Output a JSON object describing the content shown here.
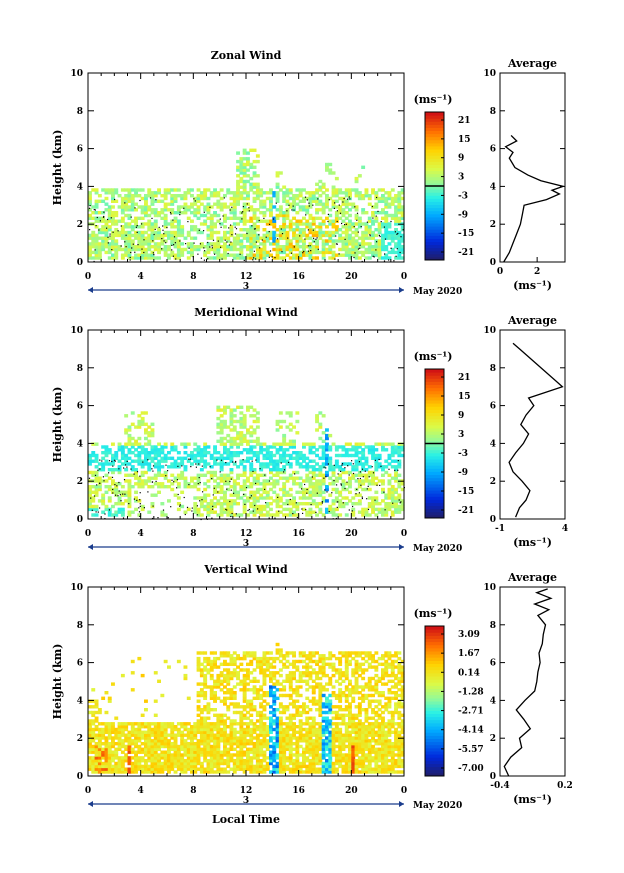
{
  "figure": {
    "month_label": "May 2020",
    "day_label": "3",
    "xlabel": "Local Time",
    "ylabel": "Height (km)",
    "unit_label": "(ms⁻¹)",
    "average_title": "Average",
    "x_ticks": [
      "0",
      "4",
      "8",
      "12",
      "16",
      "20",
      "0"
    ],
    "y_ticks": [
      "0",
      "2",
      "4",
      "6",
      "8",
      "10"
    ]
  },
  "chart_data": [
    {
      "type": "heatmap",
      "title": "Zonal Wind",
      "xlim": [
        0,
        24
      ],
      "ylim": [
        0,
        10
      ],
      "colorbar_ticks": [
        "21",
        "15",
        "9",
        "3",
        "-3",
        "-9",
        "-15",
        "-21"
      ],
      "color_range": [
        -24,
        24
      ],
      "average": {
        "title": "Average",
        "xlim": [
          0,
          3.5
        ],
        "x_ticks": [
          "0",
          "2"
        ],
        "profile": [
          [
            0.2,
            0
          ],
          [
            0.5,
            0.5
          ],
          [
            0.7,
            1
          ],
          [
            0.9,
            1.5
          ],
          [
            1.1,
            2
          ],
          [
            1.2,
            2.5
          ],
          [
            1.3,
            3
          ],
          [
            2.5,
            3.3
          ],
          [
            3.2,
            3.6
          ],
          [
            2.8,
            3.8
          ],
          [
            3.4,
            4.0
          ],
          [
            2.2,
            4.3
          ],
          [
            1.5,
            4.6
          ],
          [
            0.8,
            5.0
          ],
          [
            0.5,
            5.5
          ],
          [
            0.7,
            5.8
          ],
          [
            0.3,
            6.1
          ],
          [
            0.9,
            6.4
          ],
          [
            0.6,
            6.7
          ]
        ]
      }
    },
    {
      "type": "heatmap",
      "title": "Meridional Wind",
      "xlim": [
        0,
        24
      ],
      "ylim": [
        0,
        10
      ],
      "colorbar_ticks": [
        "21",
        "15",
        "9",
        "3",
        "-3",
        "-9",
        "-15",
        "-21"
      ],
      "color_range": [
        -24,
        24
      ],
      "average": {
        "title": "Average",
        "xlim": [
          -1,
          4
        ],
        "x_ticks": [
          "-1",
          "4"
        ],
        "profile": [
          [
            0.2,
            0.1
          ],
          [
            0.5,
            0.6
          ],
          [
            1.0,
            1.0
          ],
          [
            1.3,
            1.5
          ],
          [
            0.7,
            2.0
          ],
          [
            0,
            2.5
          ],
          [
            -0.3,
            3.0
          ],
          [
            0.2,
            3.5
          ],
          [
            0.8,
            4.0
          ],
          [
            1.2,
            4.5
          ],
          [
            0.6,
            5.0
          ],
          [
            1.0,
            5.5
          ],
          [
            1.6,
            6.0
          ],
          [
            1.2,
            6.4
          ],
          [
            2.5,
            6.7
          ],
          [
            3.8,
            7.0
          ],
          [
            0.5,
            9.0
          ],
          [
            0,
            9.3
          ]
        ]
      }
    },
    {
      "type": "heatmap",
      "title": "Vertical Wind",
      "xlim": [
        0,
        24
      ],
      "ylim": [
        0,
        10
      ],
      "colorbar_ticks": [
        "3.09",
        "1.67",
        "0.14",
        "-1.28",
        "-2.71",
        "-4.14",
        "-5.57",
        "-7.00"
      ],
      "color_range": [
        -7.7,
        3.8
      ],
      "average": {
        "title": "Average",
        "xlim": [
          -0.4,
          0.2
        ],
        "x_ticks": [
          "-0.4",
          "0.2"
        ],
        "profile": [
          [
            -0.32,
            0
          ],
          [
            -0.36,
            0.5
          ],
          [
            -0.3,
            1.0
          ],
          [
            -0.2,
            1.5
          ],
          [
            -0.22,
            2.0
          ],
          [
            -0.12,
            2.5
          ],
          [
            -0.18,
            3.0
          ],
          [
            -0.25,
            3.5
          ],
          [
            -0.17,
            4.0
          ],
          [
            -0.08,
            4.5
          ],
          [
            -0.06,
            5.0
          ],
          [
            -0.05,
            5.5
          ],
          [
            -0.03,
            6.0
          ],
          [
            -0.04,
            6.5
          ],
          [
            -0.01,
            7.0
          ],
          [
            0.0,
            7.5
          ],
          [
            0.02,
            8.0
          ],
          [
            -0.05,
            8.5
          ],
          [
            0.05,
            8.8
          ],
          [
            -0.08,
            9.1
          ],
          [
            0.07,
            9.4
          ],
          [
            -0.06,
            9.7
          ],
          [
            0.04,
            9.9
          ]
        ]
      }
    }
  ]
}
